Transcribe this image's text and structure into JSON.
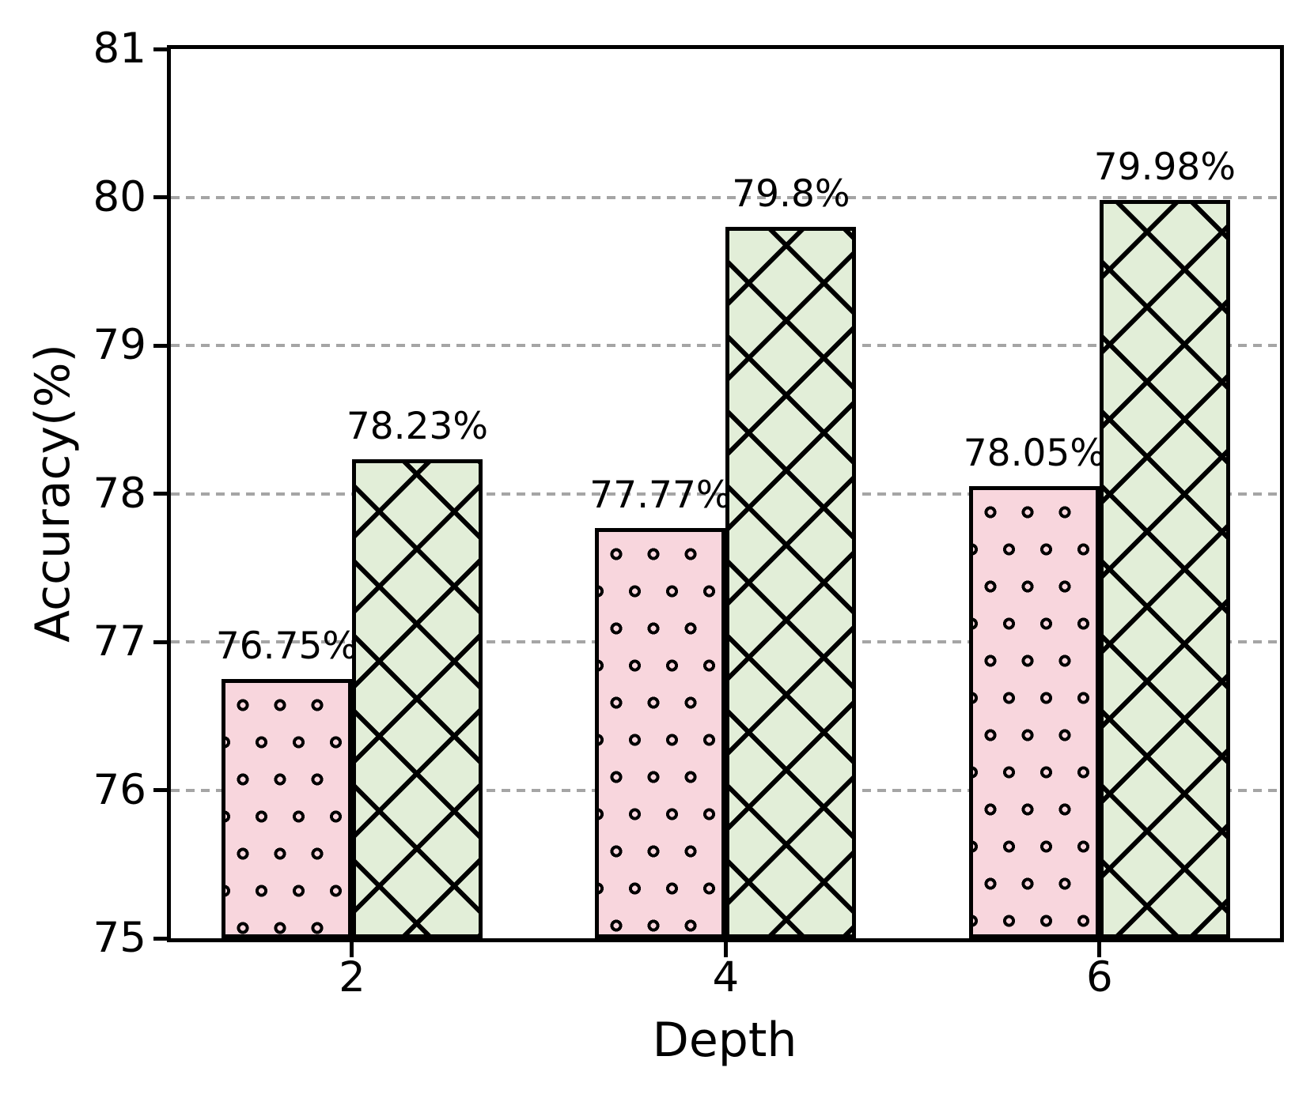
{
  "chart_data": {
    "type": "bar",
    "title": "",
    "xlabel": "Depth",
    "ylabel": "Accuracy(%)",
    "categories": [
      "2",
      "4",
      "6"
    ],
    "series": [
      {
        "name": "pink-dotted-series",
        "hatch": "o",
        "color": "#f8d6dd",
        "edge_color": "#000000",
        "values": [
          76.75,
          77.77,
          78.05
        ],
        "value_labels": [
          "76.75%",
          "77.77%",
          "78.05%"
        ]
      },
      {
        "name": "green-crosshatch-series",
        "hatch": "x",
        "color": "#e2eed8",
        "edge_color": "#000000",
        "values": [
          78.23,
          79.8,
          79.98
        ],
        "value_labels": [
          "78.23%",
          "79.8%",
          "79.98%"
        ]
      }
    ],
    "ylim": [
      75,
      81
    ],
    "yticks": [
      "75",
      "76",
      "77",
      "78",
      "79",
      "80",
      "81"
    ],
    "xticks": [
      "2",
      "4",
      "6"
    ],
    "grid": {
      "axis": "y",
      "style": "dashed",
      "color": "#a5a5a5",
      "on": true
    },
    "legend_position": "none"
  }
}
